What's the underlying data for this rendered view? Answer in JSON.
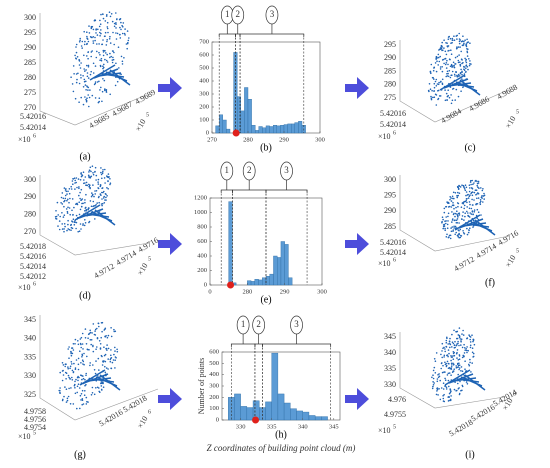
{
  "panels": [
    {
      "label": "(a)",
      "z": [
        "270",
        "275",
        "280",
        "285",
        "290",
        "295",
        "300"
      ],
      "u": [
        "5.42016",
        "5.42014"
      ],
      "u_exp": {
        "base": "×10",
        "exp": "6"
      },
      "v": [
        "4.9685",
        "4.9687",
        "4.9689"
      ],
      "v_exp": {
        "base": "×10",
        "exp": "5"
      }
    },
    {
      "label": "(c)",
      "z": [
        "275",
        "280",
        "285",
        "290",
        "295"
      ],
      "u": [
        "5.42016",
        "5.42014"
      ],
      "u_exp": {
        "base": "×10",
        "exp": "6"
      },
      "v": [
        "4.9684",
        "4.9686",
        "4.9688"
      ],
      "v_exp": {
        "base": "×10",
        "exp": "5"
      }
    },
    {
      "label": "(d)",
      "z": [
        "270",
        "280",
        "290",
        "300"
      ],
      "u": [
        "5.42018",
        "5.42016",
        "5.42014",
        "5.42012"
      ],
      "u_exp": {
        "base": "×10",
        "exp": "6"
      },
      "v": [
        "4.9712",
        "4.9714",
        "4.9716"
      ],
      "v_exp": {
        "base": "×10",
        "exp": "5"
      }
    },
    {
      "label": "(f)",
      "z": [
        "285",
        "290",
        "295",
        "300"
      ],
      "u": [
        "5.42016",
        "5.42014"
      ],
      "u_exp": {
        "base": "×10",
        "exp": "6"
      },
      "v": [
        "4.9712",
        "4.9714",
        "4.9716"
      ],
      "v_exp": {
        "base": "×10",
        "exp": "5"
      }
    },
    {
      "label": "(g)",
      "z": [
        "325",
        "330",
        "335",
        "340",
        "345"
      ],
      "u": [
        "4.9758",
        "4.9756",
        "4.9754"
      ],
      "u_exp": {
        "base": "×10",
        "exp": "5"
      },
      "v": [
        "5.42016",
        "5.42018"
      ],
      "v_exp": {
        "base": "×10",
        "exp": "6"
      }
    },
    {
      "label": "(i)",
      "z": [
        "330",
        "335",
        "340",
        "345"
      ],
      "u": [
        "4.976",
        "4.9755"
      ],
      "u_exp": {
        "base": "×10",
        "exp": "5"
      },
      "v": [
        "5.42018",
        "5.42016",
        "5.42014"
      ],
      "v_exp": {
        "base": "×10",
        "exp": "6"
      }
    }
  ],
  "chart_data": [
    {
      "type": "histogram",
      "label": "(b)",
      "color": "#5b9bd5",
      "bins": [
        271,
        272,
        273,
        274,
        275,
        276,
        277,
        278,
        279,
        280,
        281,
        282,
        283,
        284,
        285,
        286,
        287,
        288,
        289,
        290,
        291,
        292,
        293,
        294,
        295,
        296
      ],
      "counts": [
        55,
        140,
        100,
        30,
        0,
        620,
        280,
        170,
        350,
        260,
        60,
        20,
        50,
        40,
        55,
        50,
        60,
        55,
        60,
        65,
        70,
        70,
        80,
        90,
        60
      ],
      "xlim": [
        270,
        300
      ],
      "xticks": [
        270,
        280,
        290,
        300
      ],
      "ylim": [
        0,
        700
      ],
      "yticks": [
        0,
        100,
        200,
        300,
        400,
        500,
        600,
        700
      ],
      "regions": [
        {
          "label": "1",
          "range": [
            272,
            276.5
          ]
        },
        {
          "label": "2",
          "range": [
            276.5,
            277.8
          ]
        },
        {
          "label": "3",
          "range": [
            277.8,
            295.5
          ]
        }
      ],
      "marker": 276.7
    },
    {
      "type": "histogram",
      "label": "(e)",
      "color": "#5b9bd5",
      "bins": [
        274,
        275,
        276,
        277,
        278,
        279,
        280,
        281,
        282,
        283,
        284,
        285,
        286,
        287,
        288,
        289,
        290,
        291,
        292
      ],
      "counts": [
        0,
        1150,
        30,
        0,
        0,
        0,
        60,
        50,
        80,
        70,
        100,
        120,
        150,
        400,
        380,
        600,
        560,
        100
      ],
      "xlim": [
        270,
        300
      ],
      "xticks": [
        {
          "value": 270,
          "label": "0"
        },
        280,
        290,
        300
      ],
      "ylim": [
        0,
        1200
      ],
      "yticks": [
        0,
        200,
        400,
        600,
        800,
        1000,
        1200
      ],
      "regions": [
        {
          "label": "1",
          "range": [
            273,
            276
          ]
        },
        {
          "label": "2",
          "range": [
            276,
            285
          ]
        },
        {
          "label": "3",
          "range": [
            285,
            296
          ]
        }
      ],
      "marker": 275.5
    },
    {
      "type": "histogram",
      "label": "(h)",
      "color": "#5b9bd5",
      "ylabel": "Number of points",
      "xlabel": "Z coordinates of building point cloud (m)",
      "bins": [
        328,
        329,
        330,
        331,
        332,
        333,
        334,
        335,
        336,
        337,
        338,
        339,
        340,
        341,
        342,
        343,
        344
      ],
      "counts": [
        200,
        230,
        120,
        110,
        170,
        110,
        160,
        590,
        230,
        150,
        100,
        80,
        70,
        40,
        30,
        30
      ],
      "xlim": [
        327,
        346
      ],
      "xticks": [
        330,
        335,
        340,
        345
      ],
      "ylim": [
        0,
        600
      ],
      "yticks": [
        0,
        100,
        200,
        300,
        400,
        500,
        600
      ],
      "regions": [
        {
          "label": "1",
          "range": [
            328.5,
            332.3
          ]
        },
        {
          "label": "2",
          "range": [
            332.3,
            333.5
          ]
        },
        {
          "label": "3",
          "range": [
            333.5,
            344.5
          ]
        }
      ],
      "marker": 332.4
    }
  ]
}
